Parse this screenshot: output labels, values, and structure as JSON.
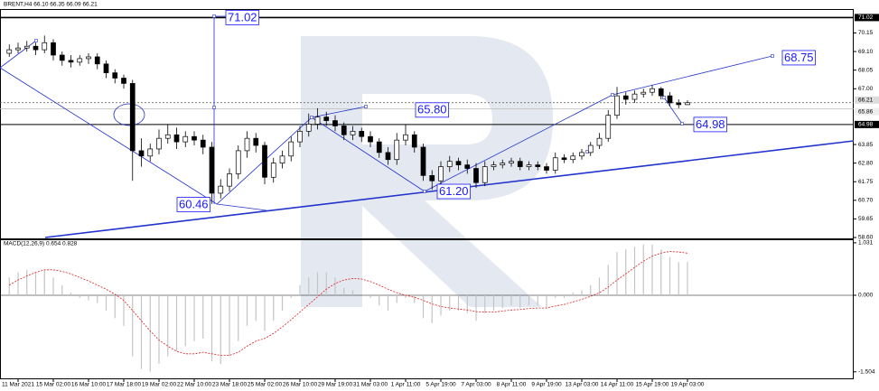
{
  "chart_data": {
    "type": "candlestick",
    "title": "BRENT,H4  66.10 66.35 66.09 66.21",
    "categories": [
      null,
      "11 Mar 2021",
      null,
      null,
      null,
      "15 Mar 02:00",
      null,
      null,
      null,
      "16 Mar 10:00",
      null,
      null,
      null,
      "17 Mar 18:00",
      null,
      null,
      null,
      "19 Mar 02:00",
      null,
      null,
      null,
      "22 Mar 10:00",
      null,
      null,
      null,
      "23 Mar 18:00",
      null,
      null,
      null,
      "25 Mar 02:00",
      null,
      null,
      null,
      "26 Mar 10:00",
      null,
      null,
      null,
      "29 Mar 19:00",
      null,
      null,
      null,
      "31 Mar 03:00",
      null,
      null,
      null,
      "1 Apr 11:00",
      null,
      null,
      null,
      "5 Apr 19:00",
      null,
      null,
      null,
      "7 Apr 03:00",
      null,
      null,
      null,
      "8 Apr 11:00",
      null,
      null,
      null,
      "9 Apr 19:00",
      null,
      null,
      null,
      "13 Apr 03:00",
      null,
      null,
      null,
      "14 Apr 11:00",
      null,
      null,
      null,
      "15 Apr 19:00",
      null,
      null,
      null,
      "19 Apr 03:00"
    ],
    "open": [
      69.0,
      69.2,
      69.3,
      69.4,
      69.2,
      69.6,
      68.9,
      68.6,
      68.5,
      68.7,
      68.8,
      68.4,
      67.9,
      67.6,
      67.3,
      63.5,
      63.2,
      63.6,
      64.2,
      64.4,
      64.0,
      64.3,
      64.1,
      63.7,
      61.1,
      61.5,
      62.2,
      63.5,
      64.2,
      63.8,
      62.0,
      62.8,
      63.2,
      64.0,
      64.6,
      65.0,
      65.4,
      65.2,
      64.9,
      64.4,
      64.6,
      64.3,
      64.0,
      63.4,
      63.0,
      64.1,
      64.4,
      63.7,
      62.1,
      61.8,
      62.6,
      62.9,
      62.7,
      62.5,
      61.7,
      62.6,
      62.7,
      62.8,
      62.9,
      62.6,
      62.7,
      62.6,
      62.4,
      63.1,
      63.0,
      63.2,
      63.4,
      63.8,
      64.2,
      65.5,
      66.6,
      66.4,
      66.7,
      66.8,
      67.0,
      66.6,
      66.2,
      66.1
    ],
    "high": [
      69.5,
      69.6,
      69.7,
      69.6,
      70.0,
      69.8,
      69.1,
      68.9,
      68.9,
      69.0,
      69.0,
      68.6,
      68.1,
      67.8,
      67.5,
      64.2,
      63.9,
      64.7,
      65.0,
      64.8,
      64.6,
      64.6,
      64.4,
      64.0,
      61.9,
      62.5,
      63.8,
      64.6,
      64.5,
      64.0,
      63.1,
      63.5,
      64.3,
      64.9,
      65.6,
      65.9,
      65.7,
      65.5,
      65.1,
      64.9,
      64.8,
      64.6,
      64.2,
      63.7,
      64.5,
      65.0,
      64.6,
      63.9,
      62.4,
      62.9,
      63.2,
      63.1,
      63.0,
      62.8,
      62.9,
      62.9,
      63.0,
      63.1,
      63.1,
      62.9,
      62.9,
      62.8,
      63.4,
      63.3,
      63.4,
      63.6,
      64.0,
      64.5,
      65.8,
      67.1,
      66.8,
      66.9,
      67.0,
      67.2,
      67.1,
      66.8,
      66.4,
      66.35
    ],
    "low": [
      68.8,
      69.0,
      69.1,
      68.9,
      69.0,
      68.6,
      68.3,
      68.2,
      68.3,
      68.4,
      68.1,
      67.6,
      67.3,
      67.0,
      61.8,
      62.6,
      62.9,
      63.3,
      63.9,
      63.6,
      63.7,
      63.8,
      63.3,
      60.5,
      60.8,
      61.2,
      61.9,
      63.1,
      63.4,
      61.6,
      61.7,
      62.5,
      62.9,
      63.7,
      64.3,
      64.7,
      64.9,
      64.6,
      64.1,
      64.1,
      64.0,
      63.7,
      63.1,
      62.7,
      62.7,
      63.8,
      63.4,
      61.8,
      61.3,
      61.5,
      62.3,
      62.4,
      62.2,
      61.4,
      61.5,
      62.4,
      62.5,
      62.6,
      62.4,
      62.4,
      62.4,
      62.2,
      62.2,
      62.8,
      62.8,
      63.0,
      63.2,
      63.6,
      64.0,
      65.3,
      66.1,
      66.2,
      66.5,
      66.6,
      66.4,
      66.0,
      65.9,
      66.09
    ],
    "close": [
      69.2,
      69.3,
      69.4,
      69.2,
      69.6,
      68.9,
      68.6,
      68.5,
      68.7,
      68.8,
      68.4,
      67.9,
      67.6,
      67.3,
      63.5,
      63.2,
      63.6,
      64.2,
      64.4,
      64.0,
      64.3,
      64.1,
      63.7,
      61.1,
      61.5,
      62.2,
      63.5,
      64.2,
      63.8,
      62.0,
      62.8,
      63.2,
      64.0,
      64.6,
      65.0,
      65.4,
      65.2,
      64.9,
      64.4,
      64.6,
      64.3,
      64.0,
      63.4,
      63.0,
      64.1,
      64.4,
      63.7,
      62.1,
      61.8,
      62.6,
      62.9,
      62.7,
      62.5,
      61.7,
      62.6,
      62.7,
      62.8,
      62.9,
      62.6,
      62.7,
      62.6,
      62.4,
      63.1,
      63.0,
      63.2,
      63.4,
      63.8,
      64.2,
      65.5,
      66.6,
      66.4,
      66.7,
      66.8,
      67.0,
      66.6,
      66.2,
      66.1,
      66.21
    ],
    "ylim": [
      58.55,
      71.5
    ],
    "yticks": [
      70.15,
      {
        "value": 69.1,
        "label": "69.10"
      },
      68.05,
      {
        "value": 67,
        "label": "67.00"
      },
      63.85,
      {
        "value": 62.8,
        "label": "62.80"
      },
      61.75,
      {
        "value": 60.7,
        "label": "60.70"
      },
      59.65,
      {
        "value": 58.6,
        "label": "58.60"
      }
    ],
    "levels": [
      71.02,
      64.98
    ],
    "price_lines": [
      66.21,
      65.86
    ],
    "annotations": [
      71.02,
      {
        "value": 65.8,
        "label": "65.80"
      },
      60.46,
      {
        "value": 61.2,
        "label": "61.20"
      },
      68.75,
      64.98
    ],
    "annotation_color": "#1a1aff",
    "trend_color": "#2233cc",
    "macd": {
      "title": "MACD(12,26,9) 0.654 0.828",
      "histogram": [
        0.35,
        0.45,
        0.5,
        0.45,
        0.5,
        0.35,
        0.2,
        0.05,
        -0.05,
        -0.1,
        -0.15,
        -0.3,
        -0.45,
        -0.6,
        -1.2,
        -1.45,
        -1.5,
        -1.35,
        -1.2,
        -1.1,
        -1.0,
        -0.9,
        -0.85,
        -1.3,
        -1.35,
        -1.2,
        -0.9,
        -0.6,
        -0.5,
        -0.7,
        -0.5,
        -0.3,
        -0.05,
        0.2,
        0.35,
        0.45,
        0.45,
        0.35,
        0.15,
        0.1,
        0.0,
        -0.05,
        -0.2,
        -0.3,
        -0.15,
        -0.05,
        -0.15,
        -0.45,
        -0.55,
        -0.4,
        -0.3,
        -0.3,
        -0.35,
        -0.5,
        -0.35,
        -0.3,
        -0.25,
        -0.2,
        -0.25,
        -0.2,
        -0.2,
        -0.25,
        -0.05,
        -0.05,
        0.05,
        0.1,
        0.2,
        0.35,
        0.6,
        0.85,
        0.9,
        0.95,
        1.0,
        1.0,
        0.9,
        0.75,
        0.65,
        0.654
      ],
      "signal": [
        0.2,
        0.3,
        0.38,
        0.45,
        0.5,
        0.5,
        0.47,
        0.42,
        0.35,
        0.28,
        0.2,
        0.12,
        0.02,
        -0.1,
        -0.3,
        -0.5,
        -0.7,
        -0.88,
        -1.0,
        -1.1,
        -1.15,
        -1.15,
        -1.12,
        -1.15,
        -1.18,
        -1.18,
        -1.12,
        -1.0,
        -0.9,
        -0.85,
        -0.75,
        -0.62,
        -0.48,
        -0.33,
        -0.18,
        -0.03,
        0.12,
        0.23,
        0.3,
        0.33,
        0.32,
        0.27,
        0.2,
        0.12,
        0.05,
        0.0,
        -0.04,
        -0.1,
        -0.17,
        -0.22,
        -0.25,
        -0.27,
        -0.29,
        -0.32,
        -0.33,
        -0.33,
        -0.31,
        -0.29,
        -0.28,
        -0.26,
        -0.25,
        -0.25,
        -0.21,
        -0.18,
        -0.13,
        -0.08,
        -0.02,
        0.05,
        0.16,
        0.3,
        0.42,
        0.55,
        0.67,
        0.77,
        0.83,
        0.86,
        0.85,
        0.828
      ],
      "histogram_color": "#c4c4c4",
      "signal_color": "#e02020",
      "ylim": [
        -1.65,
        1.1
      ],
      "yticks": [
        1.031,
        {
          "value": 0,
          "label": "0.000"
        },
        -1.504
      ]
    }
  }
}
